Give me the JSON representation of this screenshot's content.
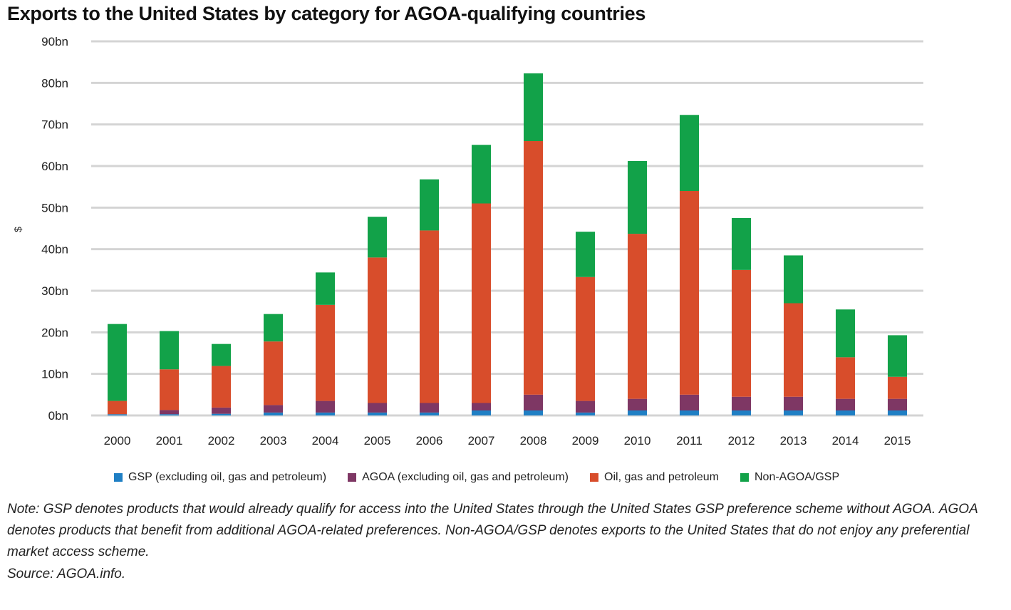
{
  "chart_data": {
    "type": "bar",
    "stacked": true,
    "title": "Exports to the United States by category for AGOA-qualifying countries",
    "xlabel": "",
    "ylabel": "$",
    "ylim": [
      0,
      90
    ],
    "yticks": [
      "0bn",
      "10bn",
      "20bn",
      "30bn",
      "40bn",
      "50bn",
      "60bn",
      "70bn",
      "80bn",
      "90bn"
    ],
    "grid": "horizontal",
    "legend_position": "bottom",
    "categories": [
      "2000",
      "2001",
      "2002",
      "2003",
      "2004",
      "2005",
      "2006",
      "2007",
      "2008",
      "2009",
      "2010",
      "2011",
      "2012",
      "2013",
      "2014",
      "2015"
    ],
    "series": [
      {
        "name": "GSP (excluding oil, gas and petroleum)",
        "color": "#1f7fc4",
        "values": [
          0.3,
          0.3,
          0.4,
          0.7,
          0.7,
          0.7,
          0.7,
          1.2,
          1.2,
          0.7,
          1.2,
          1.2,
          1.2,
          1.2,
          1.2,
          1.2
        ]
      },
      {
        "name": "AGOA (excluding oil, gas and petroleum)",
        "color": "#7e3764",
        "values": [
          0.0,
          1.0,
          1.5,
          1.8,
          2.8,
          2.3,
          2.3,
          1.8,
          3.8,
          2.8,
          2.8,
          3.8,
          3.3,
          3.3,
          2.8,
          2.8
        ]
      },
      {
        "name": "Oil, gas and petroleum",
        "color": "#d84d2b",
        "values": [
          3.2,
          9.8,
          10.0,
          15.3,
          23.1,
          35.0,
          41.5,
          48.0,
          61.0,
          29.8,
          39.7,
          49.0,
          30.5,
          22.5,
          10.0,
          5.3
        ]
      },
      {
        "name": "Non-AGOA/GSP",
        "color": "#12a249",
        "values": [
          18.5,
          9.2,
          5.3,
          6.6,
          7.8,
          9.8,
          12.3,
          14.1,
          16.3,
          10.9,
          17.5,
          18.3,
          12.5,
          11.5,
          11.5,
          10.0
        ]
      }
    ]
  },
  "note": "Note: GSP denotes products that would already qualify for access into the United States through the United States GSP preference scheme without AGOA. AGOA denotes products that benefit from additional AGOA-related preferences. Non-AGOA/GSP denotes exports to the United States that do not enjoy any preferential market access scheme.",
  "source": "Source: AGOA.info."
}
